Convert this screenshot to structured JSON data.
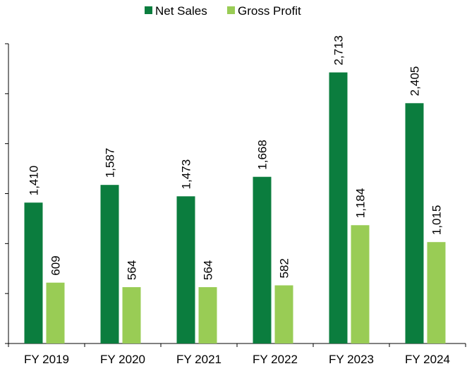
{
  "chart_data": {
    "type": "bar",
    "categories": [
      "FY 2019",
      "FY 2020",
      "FY 2021",
      "FY 2022",
      "FY 2023",
      "FY 2024"
    ],
    "series": [
      {
        "name": "Net Sales",
        "color": "#0b7d3e",
        "values": [
          1410,
          1587,
          1473,
          1668,
          2713,
          2405
        ],
        "value_labels": [
          "1,410",
          "1,587",
          "1,473",
          "1,668",
          "2,713",
          "2,405"
        ]
      },
      {
        "name": "Gross Profit",
        "color": "#99cc55",
        "values": [
          609,
          564,
          564,
          582,
          1184,
          1015
        ],
        "value_labels": [
          "609",
          "564",
          "564",
          "582",
          "1,184",
          "1,015"
        ]
      }
    ],
    "ylim": [
      0,
      3000
    ],
    "yticks": [
      0,
      500,
      1000,
      1500,
      2000,
      2500,
      3000
    ],
    "legend": "top"
  }
}
